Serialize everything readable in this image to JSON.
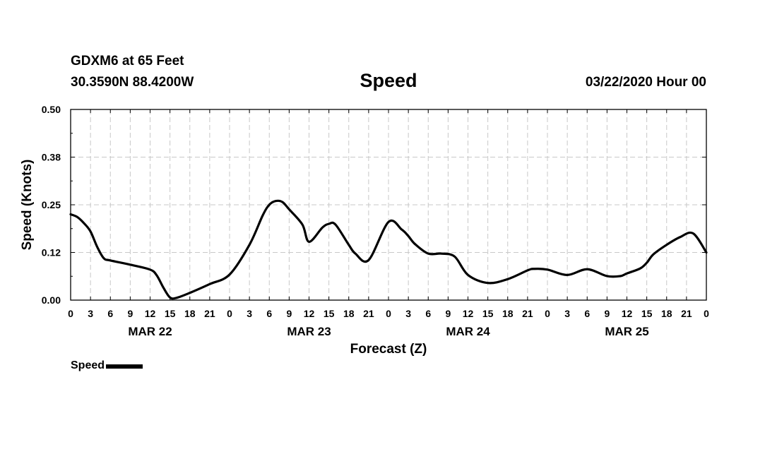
{
  "header": {
    "station": "GDXM6 at 65 Feet",
    "coords": "30.3590N 88.4200W",
    "title": "Speed",
    "run_time": "03/22/2020 Hour 00"
  },
  "chart_data": {
    "type": "line",
    "title": "Speed",
    "xlabel": "Forecast (Z)",
    "ylabel": "Speed (Knots)",
    "ylim": [
      0,
      0.5
    ],
    "xlim": [
      0,
      96
    ],
    "yticks": [
      "0.00",
      "0.12",
      "0.25",
      "0.38",
      "0.50"
    ],
    "xticks": [
      "0",
      "3",
      "6",
      "9",
      "12",
      "15",
      "18",
      "21",
      "0",
      "3",
      "6",
      "9",
      "12",
      "15",
      "18",
      "21",
      "0",
      "3",
      "6",
      "9",
      "12",
      "15",
      "18",
      "21",
      "0",
      "3",
      "6",
      "9",
      "12",
      "15",
      "18",
      "21",
      "0"
    ],
    "days": [
      {
        "label": "MAR 22",
        "center_hour": 12
      },
      {
        "label": "MAR 23",
        "center_hour": 36
      },
      {
        "label": "MAR 24",
        "center_hour": 60
      },
      {
        "label": "MAR 25",
        "center_hour": 84
      }
    ],
    "grid": true,
    "legend": "bottom-left",
    "series": [
      {
        "name": "Speed",
        "x": [
          0,
          1,
          2,
          3,
          4,
          5,
          6,
          9,
          12,
          13,
          14,
          15,
          16,
          18,
          21,
          24,
          27,
          29,
          30,
          31,
          32,
          33,
          35,
          36,
          38,
          39,
          40,
          42,
          43,
          45,
          48,
          50,
          51,
          52,
          54,
          56,
          58,
          60,
          63,
          66,
          69,
          70,
          72,
          75,
          78,
          81,
          83,
          84,
          86,
          87,
          88,
          90,
          92,
          94,
          96
        ],
        "y": [
          0.225,
          0.218,
          0.202,
          0.18,
          0.14,
          0.11,
          0.104,
          0.093,
          0.08,
          0.065,
          0.033,
          0.007,
          0.006,
          0.019,
          0.042,
          0.067,
          0.145,
          0.222,
          0.25,
          0.26,
          0.257,
          0.238,
          0.198,
          0.153,
          0.19,
          0.2,
          0.198,
          0.145,
          0.122,
          0.105,
          0.205,
          0.185,
          0.168,
          0.147,
          0.122,
          0.122,
          0.114,
          0.066,
          0.045,
          0.055,
          0.078,
          0.082,
          0.08,
          0.066,
          0.081,
          0.063,
          0.063,
          0.07,
          0.083,
          0.098,
          0.12,
          0.145,
          0.165,
          0.175,
          0.125
        ]
      }
    ]
  },
  "legend": {
    "label": "Speed"
  }
}
